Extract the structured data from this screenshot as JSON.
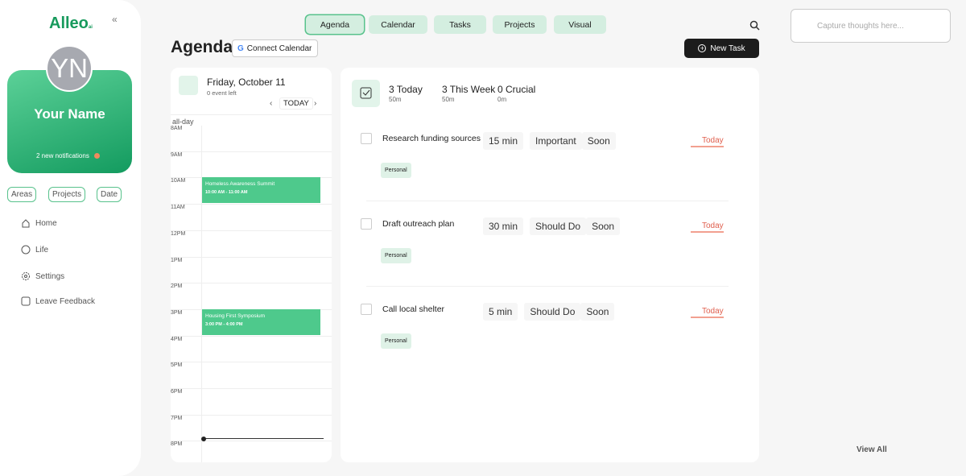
{
  "sidebar": {
    "logo": "Alleo",
    "logo_sub": "ai",
    "avatar_initials": "YN",
    "name": "Your Name",
    "notifications": "2 new notifications",
    "filters": [
      "Areas",
      "Projects",
      "Date"
    ],
    "nav": [
      "Home",
      "Life",
      "Settings",
      "Leave Feedback"
    ]
  },
  "top_nav": [
    "Agenda",
    "Calendar",
    "Tasks",
    "Projects",
    "Visual"
  ],
  "header": {
    "title": "Agenda",
    "connect": "Connect Calendar",
    "new_task": "New Task"
  },
  "notes": {
    "placeholder": "Capture thoughts here..."
  },
  "calendar": {
    "date": "Friday, October 11",
    "events_left": "0 event left",
    "today": "TODAY",
    "all_day": "all-day",
    "hours": [
      "8AM",
      "9AM",
      "10AM",
      "11AM",
      "12PM",
      "1PM",
      "2PM",
      "3PM",
      "4PM",
      "5PM",
      "6PM",
      "7PM",
      "8PM"
    ],
    "events": [
      {
        "title": "Homeless Awareness Summit",
        "time": "10:00 AM - 11:00 AM"
      },
      {
        "title": "Housing First Symposium",
        "time": "3:00 PM - 4:00 PM"
      }
    ]
  },
  "summary": [
    {
      "label": "3 Today",
      "sub": "50m"
    },
    {
      "label": "3 This Week",
      "sub": "50m"
    },
    {
      "label": "0 Crucial",
      "sub": "0m"
    }
  ],
  "tasks": [
    {
      "title": "Research funding sources",
      "duration": "15 min",
      "priority": "Important",
      "when": "Soon",
      "tag": "Personal",
      "due": "Today"
    },
    {
      "title": "Draft outreach plan",
      "duration": "30 min",
      "priority": "Should Do",
      "when": "Soon",
      "tag": "Personal",
      "due": "Today"
    },
    {
      "title": "Call local shelter",
      "duration": "5 min",
      "priority": "Should Do",
      "when": "Soon",
      "tag": "Personal",
      "due": "Today"
    }
  ],
  "view_all": "View All"
}
